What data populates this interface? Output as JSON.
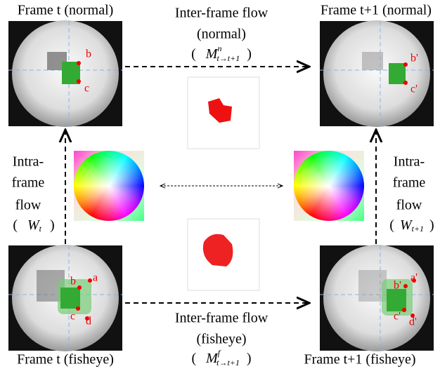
{
  "frames": [
    {
      "label": "Frame t (normal)",
      "points": [
        "b",
        "c"
      ]
    },
    {
      "label": "Frame t+1 (normal)",
      "points": [
        "b'",
        "c'"
      ]
    },
    {
      "label": "Frame t (fisheye)",
      "points": [
        "a",
        "b",
        "c",
        "d"
      ]
    },
    {
      "label": "Frame t+1 (fisheye)",
      "points": [
        "a'",
        "b'",
        "c'",
        "d'"
      ]
    }
  ],
  "inter_flows": [
    {
      "title": "Inter-frame flow",
      "mode": "(normal)",
      "symbol": {
        "open": "(",
        "base": "M",
        "sup": "n",
        "sub": "t→t+1",
        "close": ")"
      }
    },
    {
      "title": "Inter-frame flow",
      "mode": "(fisheye)",
      "symbol": {
        "open": "(",
        "base": "M",
        "sup": "f",
        "sub": "t→t+1",
        "close": ")"
      }
    }
  ],
  "intra_flows": [
    {
      "lines": [
        "Intra-",
        "frame",
        "flow"
      ],
      "symbol": {
        "open": "(",
        "base": "W",
        "sub": "t",
        "close": ")"
      }
    },
    {
      "lines": [
        "Intra-",
        "frame",
        "flow"
      ],
      "symbol": {
        "open": "(",
        "base": "W",
        "sub": "t+1",
        "close": ")"
      }
    }
  ]
}
